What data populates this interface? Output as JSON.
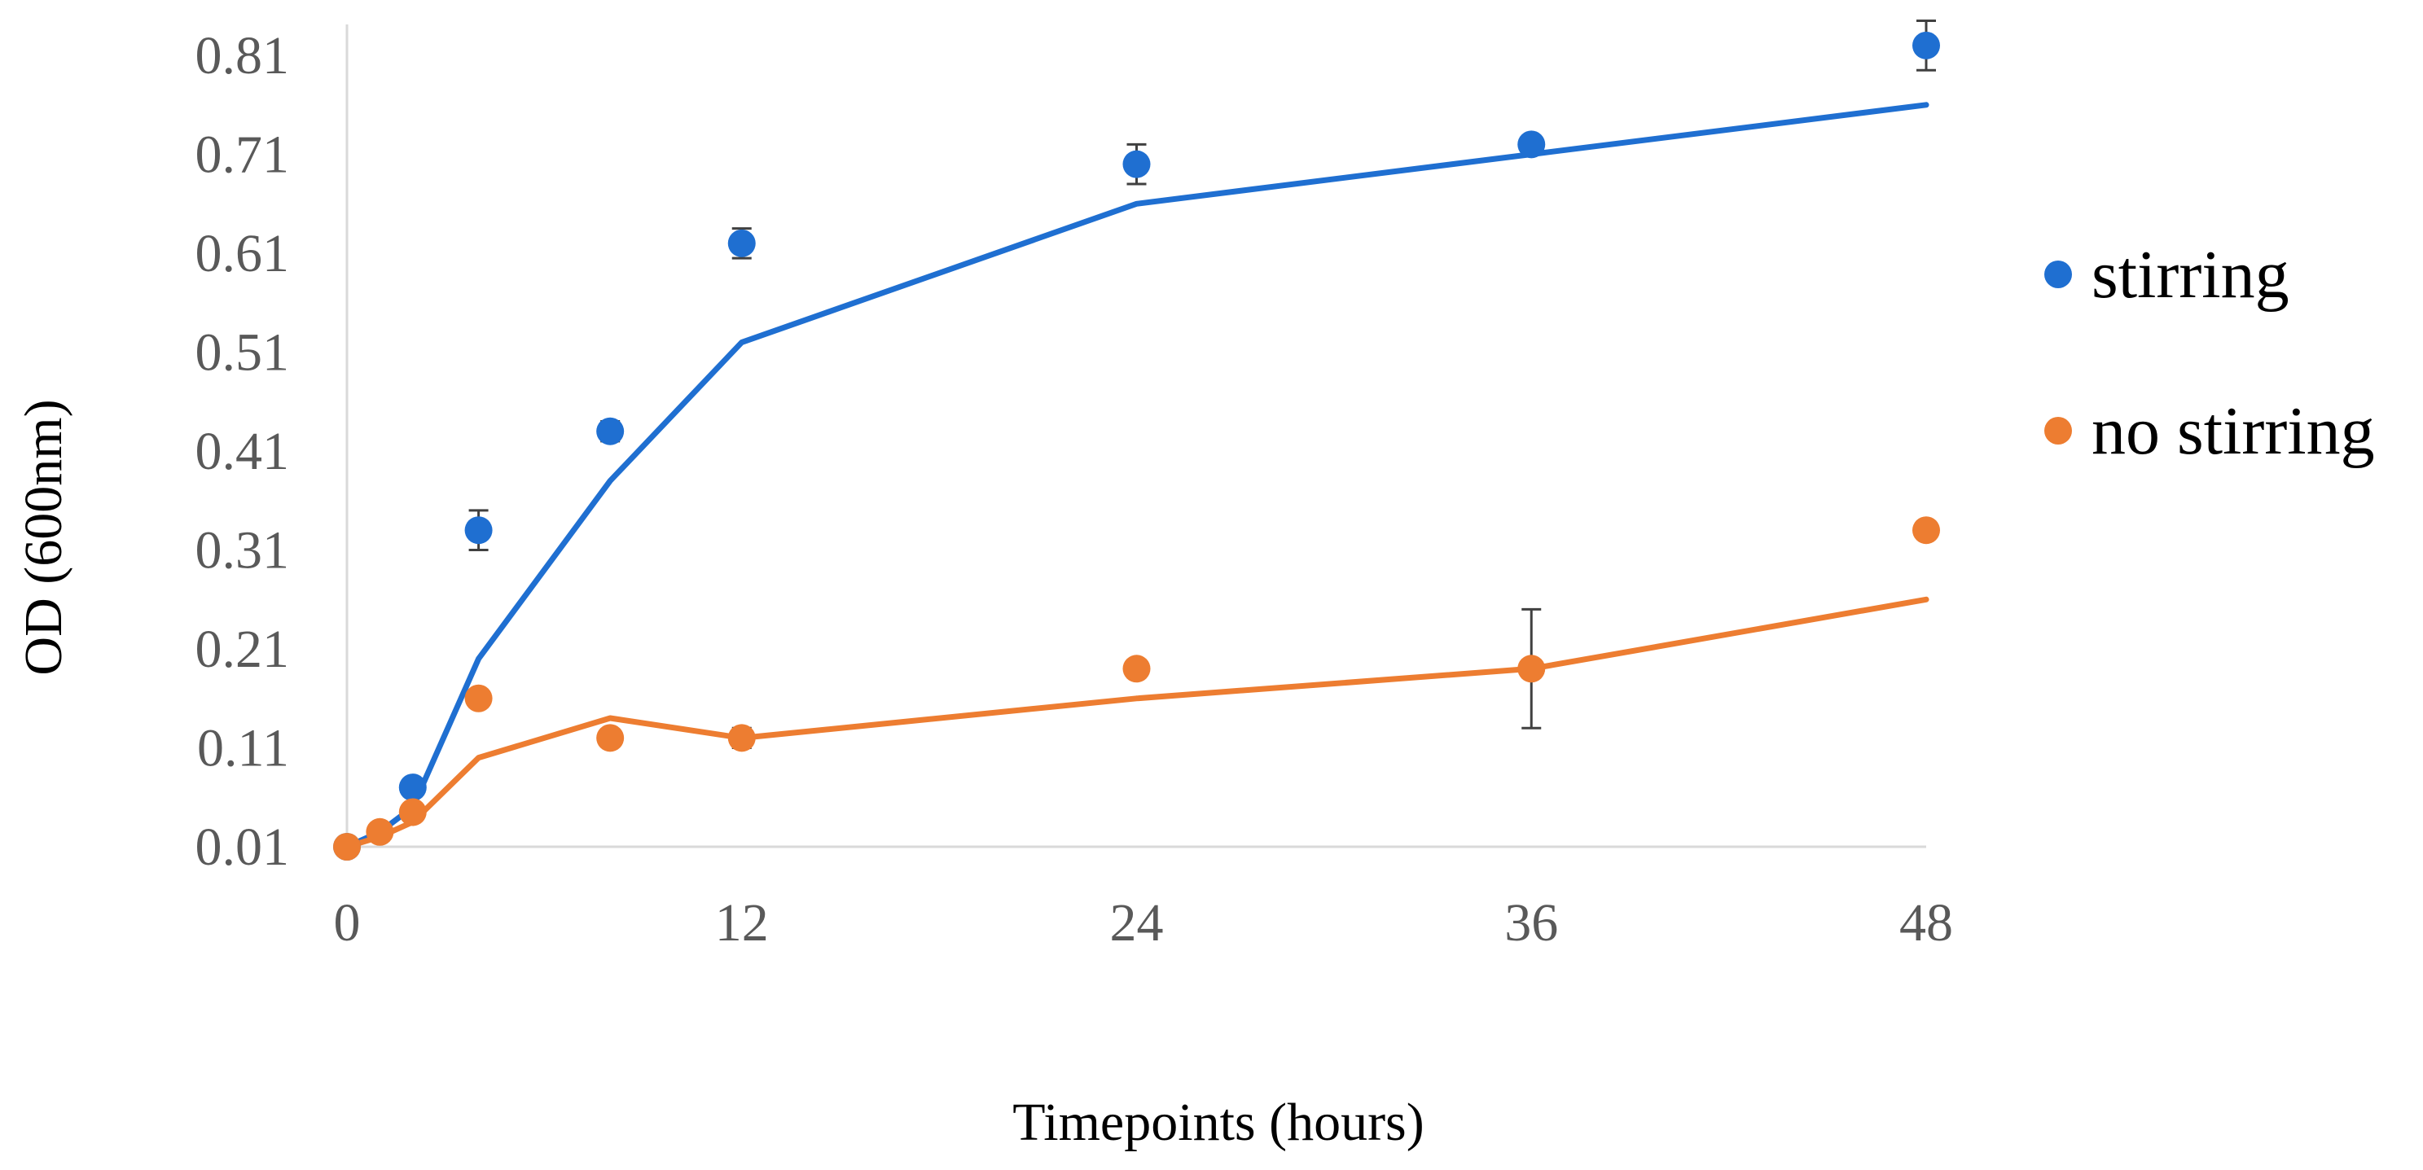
{
  "chart_data": {
    "type": "scatter",
    "title": "",
    "xlabel": "Timepoints (hours)",
    "ylabel": "OD (600nm)",
    "xlim": [
      0,
      48
    ],
    "ylim": [
      0.01,
      0.81
    ],
    "xticks": [
      "0",
      "12",
      "24",
      "36",
      "48"
    ],
    "yticks": [
      "0.01",
      "0.11",
      "0.21",
      "0.31",
      "0.41",
      "0.51",
      "0.61",
      "0.71",
      "0.81"
    ],
    "grid": false,
    "legend_position": "right",
    "series": [
      {
        "name": "stirring",
        "color": "#1f6fd1",
        "points": [
          {
            "x": 0,
            "y": 0.01,
            "err": 0
          },
          {
            "x": 2,
            "y": 0.07,
            "err": 0.005
          },
          {
            "x": 4,
            "y": 0.33,
            "err": 0.02
          },
          {
            "x": 8,
            "y": 0.43,
            "err": 0.01
          },
          {
            "x": 12,
            "y": 0.62,
            "err": 0.015
          },
          {
            "x": 24,
            "y": 0.7,
            "err": 0.02
          },
          {
            "x": 36,
            "y": 0.72,
            "err": 0.005
          },
          {
            "x": 48,
            "y": 0.82,
            "err": 0.025
          }
        ],
        "trend": [
          {
            "x": 0,
            "y": 0.01
          },
          {
            "x": 1,
            "y": 0.025
          },
          {
            "x": 2,
            "y": 0.05
          },
          {
            "x": 4,
            "y": 0.2
          },
          {
            "x": 8,
            "y": 0.38
          },
          {
            "x": 12,
            "y": 0.52
          },
          {
            "x": 24,
            "y": 0.66
          },
          {
            "x": 36,
            "y": 0.71
          },
          {
            "x": 48,
            "y": 0.76
          }
        ]
      },
      {
        "name": "no stirring",
        "color": "#ed7d31",
        "points": [
          {
            "x": 0,
            "y": 0.01,
            "err": 0
          },
          {
            "x": 1,
            "y": 0.025,
            "err": 0
          },
          {
            "x": 2,
            "y": 0.045,
            "err": 0
          },
          {
            "x": 4,
            "y": 0.16,
            "err": 0.005
          },
          {
            "x": 8,
            "y": 0.12,
            "err": 0.005
          },
          {
            "x": 12,
            "y": 0.12,
            "err": 0.01
          },
          {
            "x": 24,
            "y": 0.19,
            "err": 0.005
          },
          {
            "x": 36,
            "y": 0.19,
            "err": 0.06
          },
          {
            "x": 48,
            "y": 0.33,
            "err": 0.005
          }
        ],
        "trend": [
          {
            "x": 0,
            "y": 0.01
          },
          {
            "x": 1,
            "y": 0.02
          },
          {
            "x": 2,
            "y": 0.035
          },
          {
            "x": 4,
            "y": 0.1
          },
          {
            "x": 8,
            "y": 0.14
          },
          {
            "x": 12,
            "y": 0.12
          },
          {
            "x": 24,
            "y": 0.16
          },
          {
            "x": 36,
            "y": 0.19
          },
          {
            "x": 48,
            "y": 0.26
          }
        ]
      }
    ]
  }
}
